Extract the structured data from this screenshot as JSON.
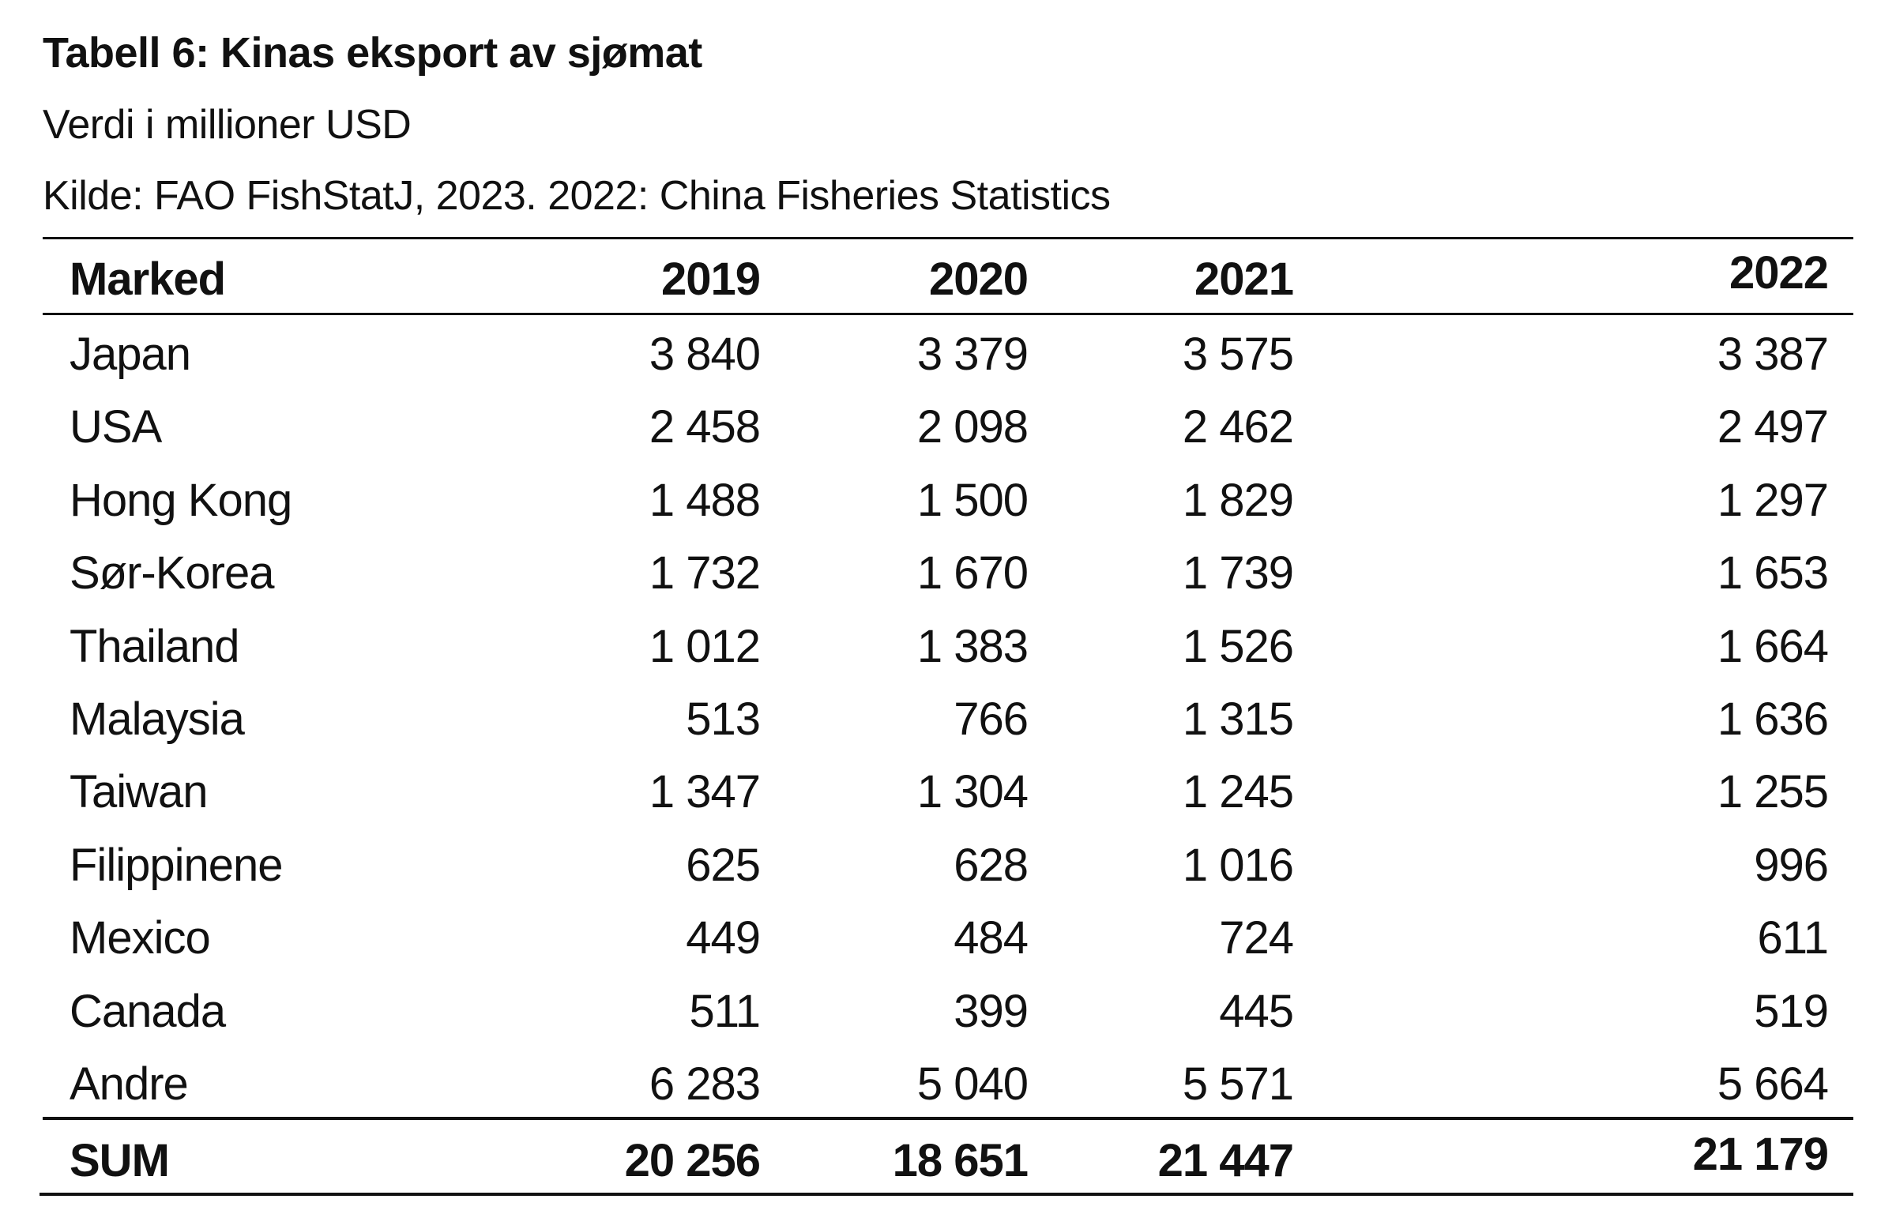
{
  "title": "Tabell 6: Kinas eksport av sjømat",
  "subtitle": "Verdi i millioner USD",
  "source": "Kilde: FAO FishStatJ, 2023. 2022: China Fisheries Statistics",
  "table": {
    "headers": [
      "Marked",
      "2019",
      "2020",
      "2021",
      "2022"
    ],
    "rows": [
      {
        "market": "Japan",
        "values": [
          "3 840",
          "3 379",
          "3 575",
          "3 387"
        ]
      },
      {
        "market": "USA",
        "values": [
          "2 458",
          "2 098",
          "2 462",
          "2 497"
        ]
      },
      {
        "market": "Hong Kong",
        "values": [
          "1 488",
          "1 500",
          "1 829",
          "1 297"
        ]
      },
      {
        "market": "Sør-Korea",
        "values": [
          "1 732",
          "1 670",
          "1 739",
          "1 653"
        ]
      },
      {
        "market": "Thailand",
        "values": [
          "1 012",
          "1 383",
          "1 526",
          "1 664"
        ]
      },
      {
        "market": "Malaysia",
        "values": [
          "513",
          "766",
          "1 315",
          "1 636"
        ]
      },
      {
        "market": "Taiwan",
        "values": [
          "1 347",
          "1 304",
          "1 245",
          "1 255"
        ]
      },
      {
        "market": "Filippinene",
        "values": [
          "625",
          "628",
          "1 016",
          "996"
        ]
      },
      {
        "market": "Mexico",
        "values": [
          "449",
          "484",
          "724",
          "611"
        ]
      },
      {
        "market": "Canada",
        "values": [
          "511",
          "399",
          "445",
          "519"
        ]
      },
      {
        "market": "Andre",
        "values": [
          "6 283",
          "5 040",
          "5 571",
          "5 664"
        ]
      }
    ],
    "sum": {
      "market": "SUM",
      "values": [
        "20 256",
        "18 651",
        "21 447",
        "21 179"
      ]
    }
  }
}
